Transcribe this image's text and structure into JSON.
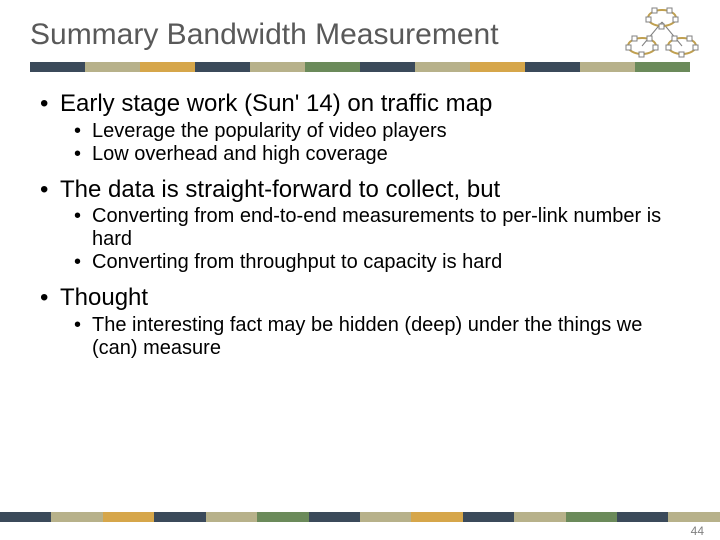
{
  "title": "Summary Bandwidth Measurement",
  "stripe_colors": [
    "#3b4a5a",
    "#b7b18a",
    "#d6a64a",
    "#3b4a5a",
    "#b7b18a",
    "#6b8a5a",
    "#3b4a5a",
    "#b7b18a",
    "#d6a64a",
    "#3b4a5a",
    "#b7b18a",
    "#6b8a5a"
  ],
  "bottom_stripe_colors": [
    "#3b4a5a",
    "#b7b18a",
    "#d6a64a",
    "#3b4a5a",
    "#b7b18a",
    "#6b8a5a",
    "#3b4a5a",
    "#b7b18a",
    "#d6a64a",
    "#3b4a5a",
    "#b7b18a",
    "#6b8a5a",
    "#3b4a5a",
    "#b7b18a"
  ],
  "icon": {
    "node_stroke": "#808080",
    "node_fill": "#ffffff",
    "ring_stroke": "#c0a050",
    "link_color": "#808080"
  },
  "content": {
    "b1": "Early stage work (Sun' 14) on traffic map",
    "b1a": "Leverage the popularity of video players",
    "b1b": "Low overhead and high coverage",
    "b2": "The data is straight-forward to collect, but",
    "b2a": "Converting from end-to-end measurements to per-link number is hard",
    "b2b": "Converting from throughput to capacity is hard",
    "b3": "Thought",
    "b3a": "The interesting fact may be hidden (deep) under the things we (can) measure"
  },
  "page_number": "44"
}
